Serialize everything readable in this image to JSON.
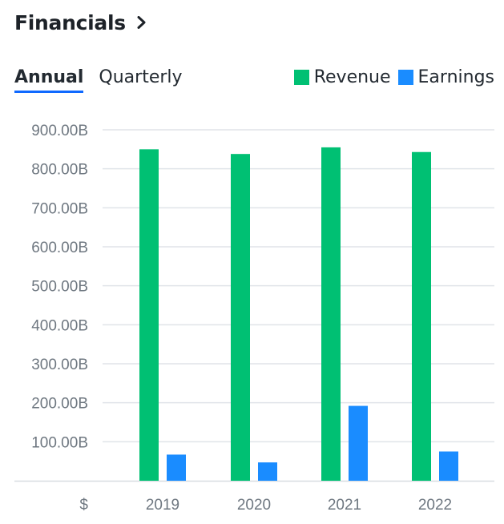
{
  "header": {
    "title": "Financials",
    "chevron_icon": "chevron-right-icon"
  },
  "tabs": [
    {
      "label": "Annual",
      "active": true
    },
    {
      "label": "Quarterly",
      "active": false
    }
  ],
  "colors": {
    "revenue": "#00c073",
    "earnings": "#1a8cff",
    "grid": "#e0e4e9",
    "tab_underline": "#0f69ff"
  },
  "chart_data": {
    "type": "bar",
    "currency_label": "$",
    "categories": [
      "2019",
      "2020",
      "2021",
      "2022"
    ],
    "series": [
      {
        "name": "Revenue",
        "values": [
          850,
          838,
          855,
          843
        ]
      },
      {
        "name": "Earnings",
        "values": [
          67,
          47,
          192,
          75
        ]
      }
    ],
    "y_ticks": [
      {
        "value": 100,
        "label": "100.00B"
      },
      {
        "value": 200,
        "label": "200.00B"
      },
      {
        "value": 300,
        "label": "300.00B"
      },
      {
        "value": 400,
        "label": "400.00B"
      },
      {
        "value": 500,
        "label": "500.00B"
      },
      {
        "value": 600,
        "label": "600.00B"
      },
      {
        "value": 700,
        "label": "700.00B"
      },
      {
        "value": 800,
        "label": "800.00B"
      },
      {
        "value": 900,
        "label": "900.00B"
      }
    ],
    "ylim": [
      0,
      900
    ],
    "grid": true,
    "legend_position": "top-right"
  }
}
